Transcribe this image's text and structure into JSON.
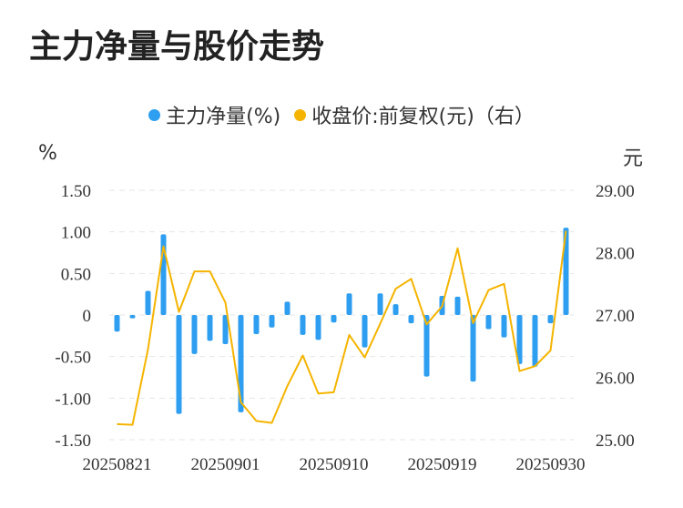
{
  "title": "主力净量与股价走势",
  "legend": {
    "net": {
      "label": "主力净量(%)",
      "color": "#2e9ef0"
    },
    "price": {
      "label": "收盘价:前复权(元)（右）",
      "color": "#f5b400"
    }
  },
  "units": {
    "left": "%",
    "right": "元"
  },
  "chart_data": {
    "type": "bar+line",
    "title": "主力净量与股价走势",
    "left_axis": {
      "label": "%",
      "min": -1.5,
      "max": 1.5,
      "ticks": [
        "1.50",
        "1.00",
        "0.50",
        "0",
        "-0.50",
        "-1.00",
        "-1.50"
      ]
    },
    "right_axis": {
      "label": "元",
      "min": 25.0,
      "max": 29.0,
      "ticks": [
        "29.00",
        "28.00",
        "27.00",
        "26.00",
        "25.00"
      ]
    },
    "x_tick_labels": [
      "20250821",
      "20250901",
      "20250910",
      "20250919",
      "20250930"
    ],
    "x_tick_index": [
      0,
      7,
      14,
      21,
      28
    ],
    "series": [
      {
        "name": "主力净量(%)",
        "type": "bar",
        "values": [
          -0.2,
          -0.04,
          0.29,
          0.97,
          -1.19,
          -0.47,
          -0.31,
          -0.35,
          -1.17,
          -0.23,
          -0.15,
          0.16,
          -0.24,
          -0.3,
          -0.09,
          0.26,
          -0.39,
          0.26,
          0.13,
          -0.1,
          -0.74,
          0.23,
          0.22,
          -0.8,
          -0.17,
          -0.27,
          -0.59,
          -0.62,
          -0.1,
          1.05
        ]
      },
      {
        "name": "收盘价:前复权(元)（右）",
        "type": "line",
        "values": [
          25.25,
          25.24,
          26.45,
          28.1,
          27.05,
          27.7,
          27.7,
          27.2,
          25.6,
          25.3,
          25.27,
          25.86,
          26.35,
          25.74,
          25.76,
          26.68,
          26.32,
          26.86,
          27.42,
          27.58,
          26.85,
          27.14,
          28.07,
          26.87,
          27.4,
          27.5,
          26.1,
          26.18,
          26.43,
          28.35
        ]
      }
    ]
  }
}
